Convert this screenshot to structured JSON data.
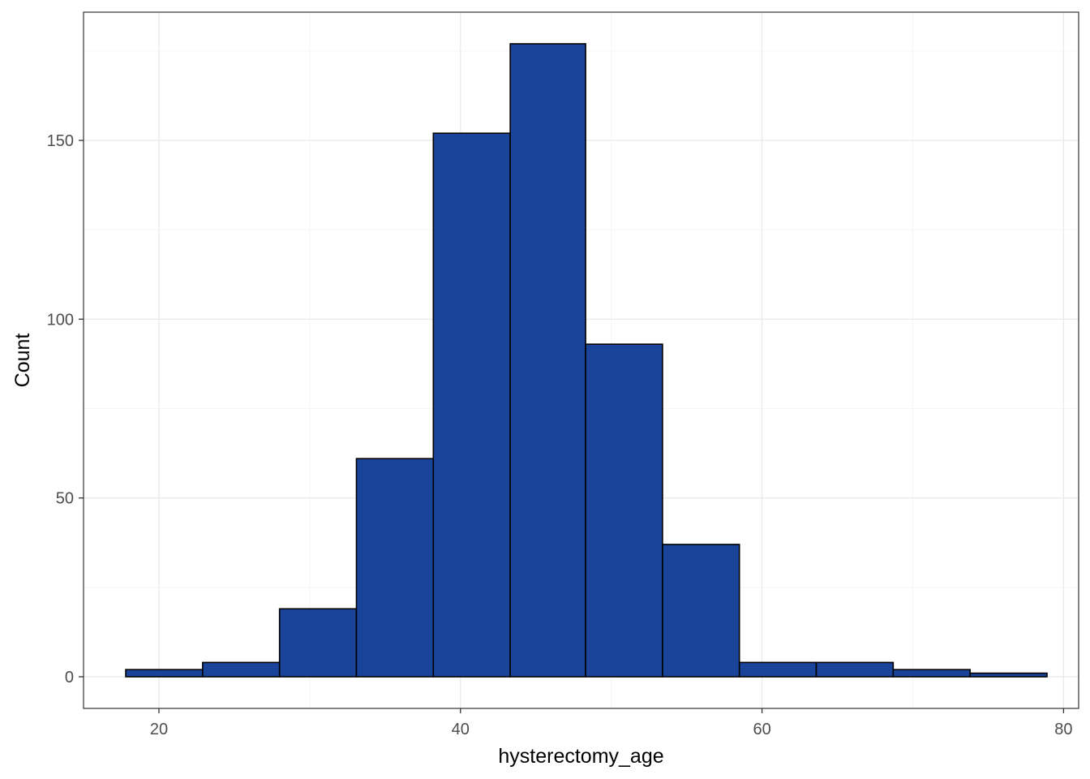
{
  "chart_data": {
    "type": "bar",
    "subtype": "histogram",
    "xlabel": "hysterectomy_age",
    "ylabel": "Count",
    "xlim": [
      15,
      81
    ],
    "ylim": [
      -8.85,
      185.85
    ],
    "x_ticks": [
      20,
      40,
      60,
      80
    ],
    "y_ticks": [
      0,
      50,
      100,
      150
    ],
    "x_minor_ticks": [
      30,
      50,
      70
    ],
    "y_minor_ticks": [
      25,
      75,
      125,
      175
    ],
    "grid": true,
    "legend": "none",
    "bins": [
      {
        "start": 17.8,
        "end": 22.9,
        "count": 2
      },
      {
        "start": 22.9,
        "end": 28.0,
        "count": 4
      },
      {
        "start": 28.0,
        "end": 33.1,
        "count": 19
      },
      {
        "start": 33.1,
        "end": 38.2,
        "count": 61
      },
      {
        "start": 38.2,
        "end": 43.3,
        "count": 152
      },
      {
        "start": 43.3,
        "end": 48.3,
        "count": 177
      },
      {
        "start": 48.3,
        "end": 53.4,
        "count": 93
      },
      {
        "start": 53.4,
        "end": 58.5,
        "count": 37
      },
      {
        "start": 58.5,
        "end": 63.6,
        "count": 4
      },
      {
        "start": 63.6,
        "end": 68.7,
        "count": 4
      },
      {
        "start": 68.7,
        "end": 73.8,
        "count": 2
      },
      {
        "start": 73.8,
        "end": 78.9,
        "count": 1
      }
    ],
    "colors": {
      "bar_fill": "#1a4499",
      "bar_stroke": "#000000",
      "grid_major": "#ebebeb",
      "grid_minor": "#f5f5f5",
      "panel_border": "#333333"
    }
  }
}
